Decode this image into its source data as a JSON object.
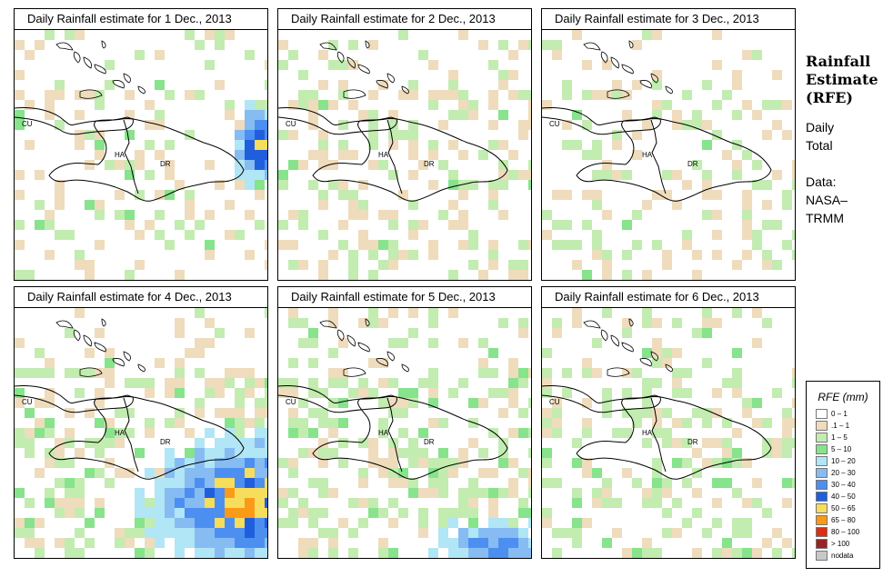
{
  "panels": [
    {
      "title": "Daily Rainfall estimate for  1 Dec., 2013",
      "seed": 11,
      "density": 0.3,
      "mix": [
        0.55,
        0.38,
        0.07
      ],
      "storm": "east"
    },
    {
      "title": "Daily Rainfall estimate for  2 Dec., 2013",
      "seed": 23,
      "density": 0.3,
      "mix": [
        0.55,
        0.42,
        0.03
      ],
      "storm": "none"
    },
    {
      "title": "Daily Rainfall estimate for  3 Dec., 2013",
      "seed": 37,
      "density": 0.26,
      "mix": [
        0.55,
        0.42,
        0.03
      ],
      "storm": "none"
    },
    {
      "title": "Daily Rainfall estimate for  4 Dec., 2013",
      "seed": 41,
      "density": 0.4,
      "mix": [
        0.45,
        0.45,
        0.1
      ],
      "storm": "southeast"
    },
    {
      "title": "Daily Rainfall estimate for  5 Dec., 2013",
      "seed": 53,
      "density": 0.42,
      "mix": [
        0.3,
        0.58,
        0.12
      ],
      "storm": "south"
    },
    {
      "title": "Daily Rainfall estimate for  6 Dec., 2013",
      "seed": 67,
      "density": 0.34,
      "mix": [
        0.35,
        0.6,
        0.05
      ],
      "storm": "none"
    }
  ],
  "map_labels": {
    "cuba": "CU",
    "haiti": "HA",
    "dr": "DR"
  },
  "sidebar": {
    "title_line1": "Rainfall",
    "title_line2": "Estimate",
    "title_line3": "(RFE)",
    "line_daily": "Daily",
    "line_total": "Total",
    "line_data": "Data:",
    "line_nasa": "NASA–",
    "line_trmm": "TRMM"
  },
  "legend": {
    "title": "RFE (mm)",
    "items": [
      {
        "label": "0 – 1",
        "color": "#ffffff"
      },
      {
        "label": ".1 – 1",
        "color": "#efdcbc"
      },
      {
        "label": "1 – 5",
        "color": "#c2ecb0"
      },
      {
        "label": "5 – 10",
        "color": "#87e38c"
      },
      {
        "label": "10 – 20",
        "color": "#b0e6f6"
      },
      {
        "label": "20 – 30",
        "color": "#87bcf2"
      },
      {
        "label": "30 – 40",
        "color": "#4c8ff0"
      },
      {
        "label": "40 – 50",
        "color": "#1f5fde"
      },
      {
        "label": "50 – 65",
        "color": "#f7dd5c"
      },
      {
        "label": "65 – 80",
        "color": "#fb9a16"
      },
      {
        "label": "80 – 100",
        "color": "#dd2d14"
      },
      {
        "label": "> 100",
        "color": "#9b2222"
      },
      {
        "label": "nodata",
        "color": "#c8c8c8"
      }
    ]
  }
}
